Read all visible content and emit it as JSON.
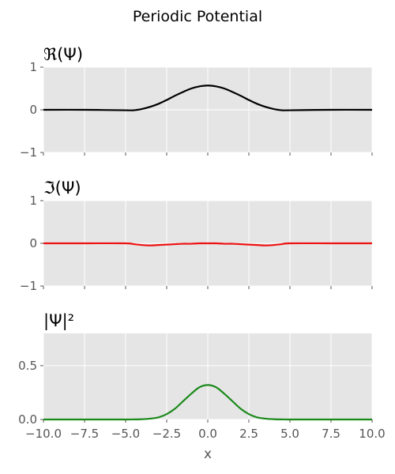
{
  "figure": {
    "suptitle": "Periodic Potential",
    "xlabel": "x"
  },
  "chart_data": [
    {
      "type": "line",
      "title": "ℜ(Ψ)",
      "xlim": [
        -10,
        10
      ],
      "ylim": [
        -1,
        1
      ],
      "grid": true,
      "xticks": [
        -10,
        -7.5,
        -5,
        -2.5,
        0,
        2.5,
        5,
        7.5,
        10
      ],
      "yticks": [
        -1,
        0,
        1
      ],
      "ytick_labels": [
        "−1",
        "0",
        "1"
      ],
      "series": [
        {
          "color": "#000000",
          "x": [
            -10,
            -7.5,
            -5,
            -4.5,
            -4,
            -3.5,
            -3,
            -2.5,
            -2,
            -1.5,
            -1,
            -0.5,
            0,
            0.5,
            1,
            1.5,
            2,
            2.5,
            3,
            3.5,
            4,
            4.5,
            5,
            7.5,
            10
          ],
          "y": [
            0,
            0,
            -0.01,
            -0.01,
            0.02,
            0.07,
            0.14,
            0.23,
            0.33,
            0.42,
            0.5,
            0.55,
            0.57,
            0.55,
            0.5,
            0.42,
            0.33,
            0.23,
            0.14,
            0.07,
            0.02,
            -0.01,
            -0.01,
            0,
            0
          ]
        }
      ]
    },
    {
      "type": "line",
      "title": "ℑ(Ψ)",
      "xlim": [
        -10,
        10
      ],
      "ylim": [
        -1,
        1
      ],
      "grid": true,
      "xticks": [
        -10,
        -7.5,
        -5,
        -2.5,
        0,
        2.5,
        5,
        7.5,
        10
      ],
      "yticks": [
        -1,
        0,
        1
      ],
      "ytick_labels": [
        "−1",
        "0",
        "1"
      ],
      "series": [
        {
          "color": "#ee1111",
          "x": [
            -10,
            -7.5,
            -5,
            -4.5,
            -4,
            -3.5,
            -3,
            -2.5,
            -2,
            -1.5,
            -1,
            -0.5,
            0,
            0.5,
            1,
            1.5,
            2,
            2.5,
            3,
            3.5,
            4,
            4.5,
            5,
            7.5,
            10
          ],
          "y": [
            0,
            0,
            0,
            -0.02,
            -0.04,
            -0.05,
            -0.04,
            -0.03,
            -0.02,
            -0.01,
            -0.01,
            0,
            0,
            0,
            -0.01,
            -0.01,
            -0.02,
            -0.03,
            -0.04,
            -0.05,
            -0.04,
            -0.02,
            0,
            0,
            0
          ]
        }
      ]
    },
    {
      "type": "line",
      "title": "|Ψ|²",
      "xlabel": "x",
      "xlim": [
        -10,
        10
      ],
      "ylim": [
        0,
        0.8
      ],
      "grid": true,
      "xticks": [
        -10,
        -7.5,
        -5,
        -2.5,
        0,
        2.5,
        5,
        7.5,
        10
      ],
      "xtick_labels": [
        "−10.0",
        "−7.5",
        "−5.0",
        "−2.5",
        "0.0",
        "2.5",
        "5.0",
        "7.5",
        "10.0"
      ],
      "yticks": [
        0,
        0.5
      ],
      "ytick_labels": [
        "0.0",
        "0.5"
      ],
      "series": [
        {
          "color": "#1a8a1a",
          "x": [
            -10,
            -7.5,
            -5,
            -4.5,
            -4,
            -3.5,
            -3,
            -2.5,
            -2,
            -1.5,
            -1,
            -0.5,
            0,
            0.5,
            1,
            1.5,
            2,
            2.5,
            3,
            3.5,
            4,
            4.5,
            5,
            7.5,
            10
          ],
          "y": [
            0,
            0,
            0,
            0.001,
            0.003,
            0.008,
            0.02,
            0.05,
            0.1,
            0.17,
            0.24,
            0.3,
            0.32,
            0.3,
            0.24,
            0.17,
            0.1,
            0.05,
            0.02,
            0.008,
            0.003,
            0.001,
            0,
            0,
            0
          ]
        }
      ]
    }
  ]
}
